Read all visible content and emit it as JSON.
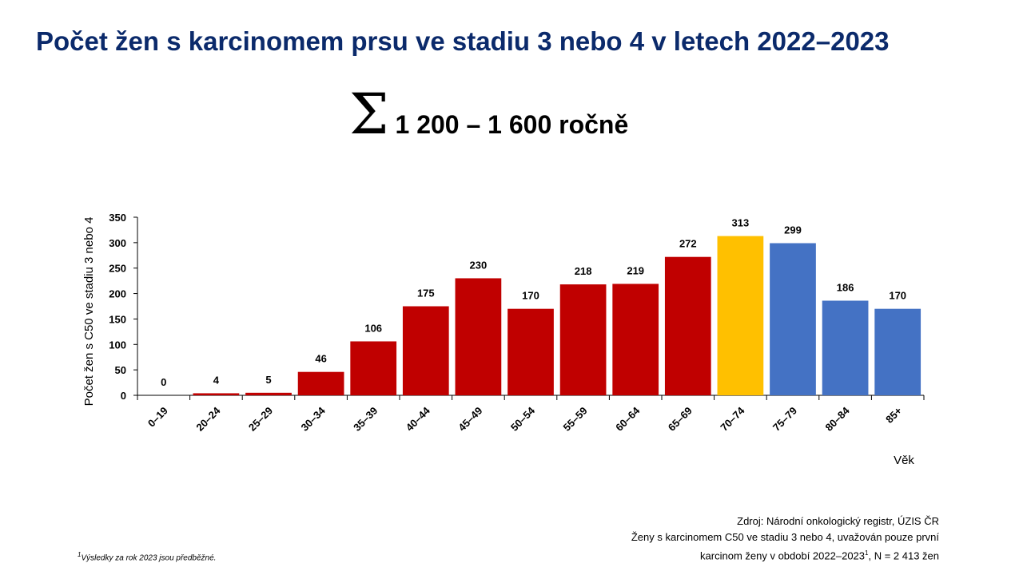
{
  "title": "Počet žen s karcinomem prsu ve stadiu 3 nebo 4 v letech 2022–2023",
  "summary": {
    "symbol": "Σ",
    "text": "1 200 – 1 600 ročně"
  },
  "chart_data": {
    "type": "bar",
    "ylabel": "Počet žen s C50 ve stadiu 3 nebo 4",
    "xlabel": "Věk",
    "ylim": [
      0,
      350
    ],
    "yticks": [
      0,
      50,
      100,
      150,
      200,
      250,
      300,
      350
    ],
    "categories": [
      "0–19",
      "20–24",
      "25–29",
      "30–34",
      "35–39",
      "40–44",
      "45–49",
      "50–54",
      "55–59",
      "60–64",
      "65–69",
      "70–74",
      "75–79",
      "80–84",
      "85+"
    ],
    "values": [
      0,
      4,
      5,
      46,
      106,
      175,
      230,
      170,
      218,
      219,
      272,
      313,
      299,
      186,
      170
    ],
    "colors": [
      "#c00000",
      "#c00000",
      "#c00000",
      "#c00000",
      "#c00000",
      "#c00000",
      "#c00000",
      "#c00000",
      "#c00000",
      "#c00000",
      "#c00000",
      "#ffc000",
      "#4472c4",
      "#4472c4",
      "#4472c4"
    ],
    "grid": false,
    "legend": "none"
  },
  "source": {
    "line1": "Zdroj: Národní onkologický registr, ÚZIS ČR",
    "line2": "Ženy s karcinomem C50 ve stadiu 3 nebo 4, uvažován pouze první",
    "line3_prefix": "karcinom ženy v období  2022–2023",
    "line3_sup": "1",
    "line3_suffix": ", N = 2 413 žen"
  },
  "footnote": {
    "sup": "1",
    "text": "Výsledky za rok 2023 jsou předběžné."
  }
}
